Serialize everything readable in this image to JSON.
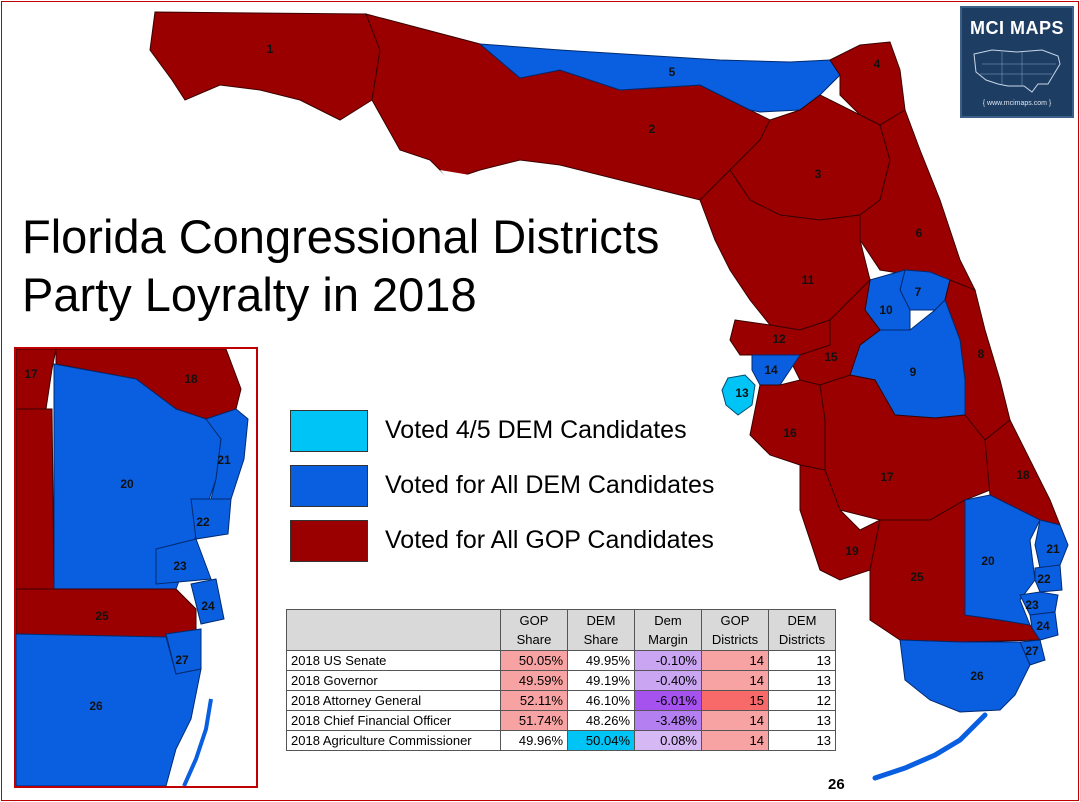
{
  "title_line1": "Florida Congressional Districts",
  "title_line2": "Party Loyralty in 2018",
  "logo": {
    "name": "MCI MAPS",
    "url": "{ www.mcimaps.com }"
  },
  "colors": {
    "gop": "#9b0000",
    "dem_all": "#0a5fe0",
    "dem_45": "#00c4f5",
    "border": "#c00000"
  },
  "legend": [
    {
      "label": "Voted 4/5 DEM Candidates",
      "color": "#00c4f5"
    },
    {
      "label": "Voted for All DEM Candidates",
      "color": "#0a5fe0"
    },
    {
      "label": "Voted for All GOP Candidates",
      "color": "#9b0000"
    }
  ],
  "map_labels": {
    "d1": "1",
    "d2": "2",
    "d3": "3",
    "d4": "4",
    "d5": "5",
    "d6": "6",
    "d7": "7",
    "d8": "8",
    "d9": "9",
    "d10": "10",
    "d11": "11",
    "d12": "12",
    "d13": "13",
    "d14": "14",
    "d15": "15",
    "d16": "16",
    "d17": "17",
    "d18": "18",
    "d19": "19",
    "d20": "20",
    "d21": "21",
    "d22": "22",
    "d23": "23",
    "d24": "24",
    "d25": "25",
    "d26": "26",
    "d27": "27",
    "d26_keys": "26"
  },
  "inset_labels": {
    "d17": "17",
    "d18": "18",
    "d20": "20",
    "d21": "21",
    "d22": "22",
    "d23": "23",
    "d24": "24",
    "d25": "25",
    "d26": "26",
    "d27": "27"
  },
  "table": {
    "headers": [
      "",
      "GOP Share",
      "DEM Share",
      "Dem Margin",
      "GOP Districts",
      "DEM Districts"
    ],
    "header_lines": [
      [
        "",
        ""
      ],
      [
        "GOP",
        "Share"
      ],
      [
        "DEM",
        "Share"
      ],
      [
        "Dem",
        "Margin"
      ],
      [
        "GOP",
        "Districts"
      ],
      [
        "DEM",
        "Districts"
      ]
    ],
    "rows": [
      {
        "race": "2018 US Senate",
        "gop": "50.05%",
        "dem": "49.95%",
        "margin": "-0.10%",
        "gop_d": "14",
        "dem_d": "13"
      },
      {
        "race": "2018 Governor",
        "gop": "49.59%",
        "dem": "49.19%",
        "margin": "-0.40%",
        "gop_d": "14",
        "dem_d": "13"
      },
      {
        "race": "2018 Attorney General",
        "gop": "52.11%",
        "dem": "46.10%",
        "margin": "-6.01%",
        "gop_d": "15",
        "dem_d": "12"
      },
      {
        "race": "2018 Chief Financial Officer",
        "gop": "51.74%",
        "dem": "48.26%",
        "margin": "-3.48%",
        "gop_d": "14",
        "dem_d": "13"
      },
      {
        "race": "2018 Agriculture Commissioner",
        "gop": "49.96%",
        "dem": "50.04%",
        "margin": "0.08%",
        "gop_d": "14",
        "dem_d": "13"
      }
    ],
    "cell_colors": {
      "gop_share": "#f8a3a3",
      "dem_share_win": "#00c4f5",
      "margin_light": "#c9a5f2",
      "margin_dark": "#a552ee",
      "gop_d": "#f8a3a3",
      "gop_d_high": "#f86a6a",
      "white": "#ffffff",
      "header_bg": "#d9d9d9"
    }
  },
  "page_number": "26"
}
